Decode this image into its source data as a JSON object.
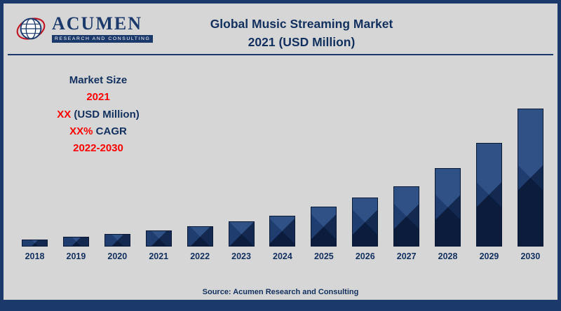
{
  "logo": {
    "brand": "ACUMEN",
    "tagline": "RESEARCH AND CONSULTING"
  },
  "header": {
    "title_line1": "Global Music Streaming Market",
    "title_line2": "2021 (USD Million)"
  },
  "market_info": {
    "size_label": "Market Size",
    "base_year": "2021",
    "value_masked": "XX",
    "value_unit": " (USD Million)",
    "cagr_masked": "XX%",
    "cagr_label": " CAGR",
    "forecast_period": "2022-2030"
  },
  "footer": {
    "source": "Source: Acumen Research and Consulting"
  },
  "colors": {
    "navy": "#1b3a6b",
    "title_navy": "#12305e",
    "red": "#ff0000",
    "background": "#d6d6d6",
    "bar_facet_top": "#2f5186",
    "bar_facet_left": "#1f3d6e",
    "bar_facet_right": "#13294f",
    "bar_facet_bottom": "#0b1c3c"
  },
  "chart_data": {
    "type": "bar",
    "title": "Global Music Streaming Market 2021 (USD Million)",
    "xlabel": "",
    "ylabel": "",
    "legend": false,
    "grid": false,
    "categories": [
      "2018",
      "2019",
      "2020",
      "2021",
      "2022",
      "2023",
      "2024",
      "2025",
      "2026",
      "2027",
      "2028",
      "2029",
      "2030"
    ],
    "values": [
      10,
      14,
      18,
      23,
      29,
      36,
      44,
      57,
      70,
      86,
      112,
      148,
      197
    ],
    "unit": "relative height (actual figures masked as XX in source image)"
  }
}
